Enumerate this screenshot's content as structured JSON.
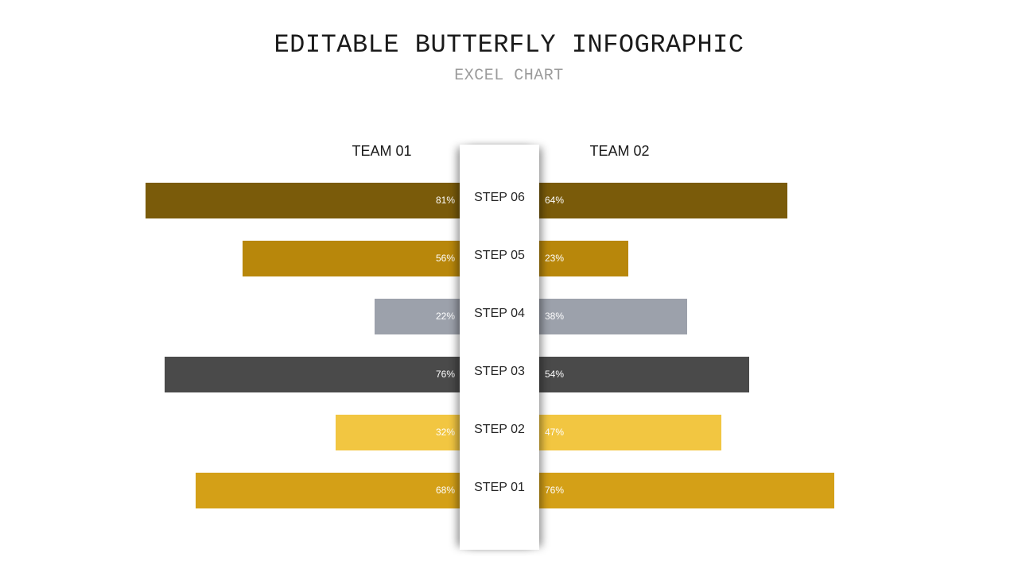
{
  "header": {
    "title": "EDITABLE BUTTERFLY INFOGRAPHIC",
    "subtitle": "EXCEL CHART"
  },
  "chart_data": {
    "type": "bar",
    "orientation": "butterfly",
    "categories": [
      "STEP 06",
      "STEP 05",
      "STEP 04",
      "STEP 03",
      "STEP 02",
      "STEP 01"
    ],
    "series": [
      {
        "name": "TEAM 01",
        "values": [
          81,
          56,
          22,
          76,
          32,
          68
        ],
        "labels": [
          "81%",
          "56%",
          "22%",
          "76%",
          "32%",
          "68%"
        ]
      },
      {
        "name": "TEAM 02",
        "values": [
          64,
          23,
          38,
          54,
          47,
          76
        ],
        "labels": [
          "64%",
          "23%",
          "38%",
          "54%",
          "47%",
          "76%"
        ]
      }
    ],
    "colors": [
      "#7a5b0a",
      "#b8870b",
      "#9ca1ab",
      "#4a4a4a",
      "#f2c641",
      "#d4a017"
    ],
    "grid": false,
    "legend": "top"
  }
}
